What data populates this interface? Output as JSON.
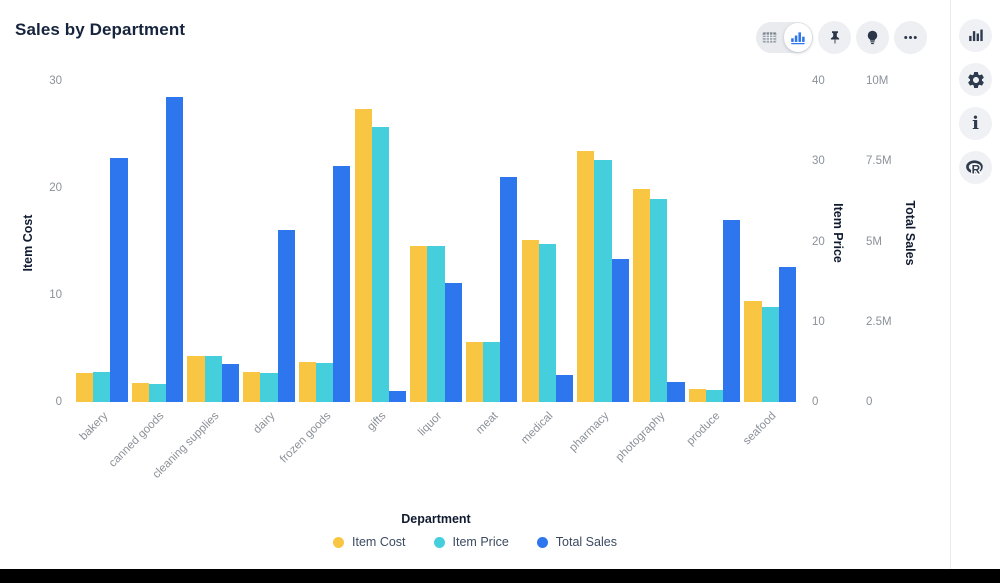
{
  "header": {
    "title": "Sales by Department"
  },
  "toolbar": {
    "view_toggle": {
      "options": [
        "table-view",
        "chart-view"
      ],
      "selected": "chart-view"
    },
    "buttons": [
      "pin",
      "lightbulb",
      "more"
    ]
  },
  "side_toolbar": {
    "buttons": [
      "bar-chart",
      "settings",
      "info",
      "r-logo"
    ],
    "info_glyph": "i",
    "r_glyph": "R"
  },
  "colors": {
    "item_cost": "#f9c643",
    "item_price": "#45cedc",
    "total_sales": "#2d76ed"
  },
  "chart_data": {
    "type": "bar",
    "title": "Sales by Department",
    "xlabel": "Department",
    "grid": false,
    "legend_position": "bottom",
    "categories": [
      "bakery",
      "canned goods",
      "cleaning supplies",
      "dairy",
      "frozen goods",
      "gifts",
      "liquor",
      "meat",
      "medical",
      "pharmacy",
      "photography",
      "produce",
      "seafood"
    ],
    "series": [
      {
        "name": "Item Cost",
        "axis": "cost",
        "color": "#f9c643",
        "values": [
          2.7,
          1.8,
          4.3,
          2.8,
          3.7,
          27.4,
          14.6,
          5.6,
          15.1,
          23.5,
          19.9,
          1.2,
          9.4
        ]
      },
      {
        "name": "Item Price",
        "axis": "price",
        "color": "#45cedc",
        "values": [
          3.8,
          2.3,
          5.7,
          3.6,
          4.8,
          34.3,
          19.5,
          7.5,
          19.7,
          30.1,
          25.3,
          1.5,
          11.8
        ]
      },
      {
        "name": "Total Sales",
        "axis": "sales",
        "color": "#2d76ed",
        "values": [
          7600000,
          9500000,
          1170000,
          5350000,
          7350000,
          340000,
          3700000,
          7000000,
          830000,
          4470000,
          620000,
          5660000,
          4200000
        ]
      }
    ],
    "axes": {
      "cost": {
        "title": "Item Cost",
        "side": "left",
        "min": 0,
        "max": 30,
        "ticks": [
          {
            "v": 0,
            "label": "0"
          },
          {
            "v": 10,
            "label": "10"
          },
          {
            "v": 20,
            "label": "20"
          },
          {
            "v": 30,
            "label": "30"
          }
        ]
      },
      "price": {
        "title": "Item Price",
        "side": "right",
        "min": 0,
        "max": 40,
        "ticks": [
          {
            "v": 0,
            "label": "0"
          },
          {
            "v": 10,
            "label": "10"
          },
          {
            "v": 20,
            "label": "20"
          },
          {
            "v": 30,
            "label": "30"
          },
          {
            "v": 40,
            "label": "40"
          }
        ]
      },
      "sales": {
        "title": "Total Sales",
        "side": "right",
        "min": 0,
        "max": 10000000,
        "ticks": [
          {
            "v": 0,
            "label": "0"
          },
          {
            "v": 2500000,
            "label": "2.5M"
          },
          {
            "v": 5000000,
            "label": "5M"
          },
          {
            "v": 7500000,
            "label": "7.5M"
          },
          {
            "v": 10000000,
            "label": "10M"
          }
        ]
      }
    },
    "legend": [
      "Item Cost",
      "Item Price",
      "Total Sales"
    ]
  }
}
